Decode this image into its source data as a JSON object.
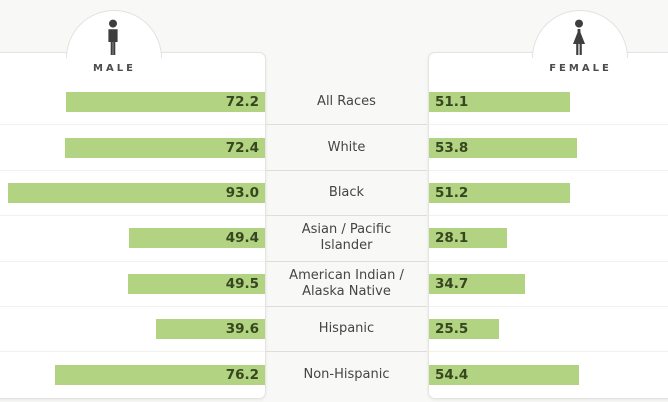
{
  "header": {
    "male": {
      "label": "MALE",
      "icon": "male-person-icon"
    },
    "female": {
      "label": "FEMALE",
      "icon": "female-person-icon"
    }
  },
  "colors": {
    "bar_fill": "#b2d382",
    "value_text": "#36461f",
    "panel_background": "#ffffff",
    "page_background": "#f8f8f7",
    "icon": "#3e3e3e"
  },
  "chart_data": {
    "type": "bar",
    "variant": "bidirectional-tornado",
    "title": "",
    "categories": [
      "All Races",
      "White",
      "Black",
      "Asian / Pacific Islander",
      "American Indian / Alaska Native",
      "Hispanic",
      "Non-Hispanic"
    ],
    "series": [
      {
        "name": "Male",
        "values": [
          72.2,
          72.4,
          93.0,
          49.4,
          49.5,
          39.6,
          76.2
        ]
      },
      {
        "name": "Female",
        "values": [
          51.1,
          53.8,
          51.2,
          28.1,
          34.7,
          25.5,
          54.4
        ]
      }
    ],
    "value_format": "one-decimal",
    "axis_max": 95.7,
    "grid": false,
    "legend_position": "top",
    "male_bars_direction": "right-to-left",
    "female_bars_direction": "left-to-right"
  }
}
